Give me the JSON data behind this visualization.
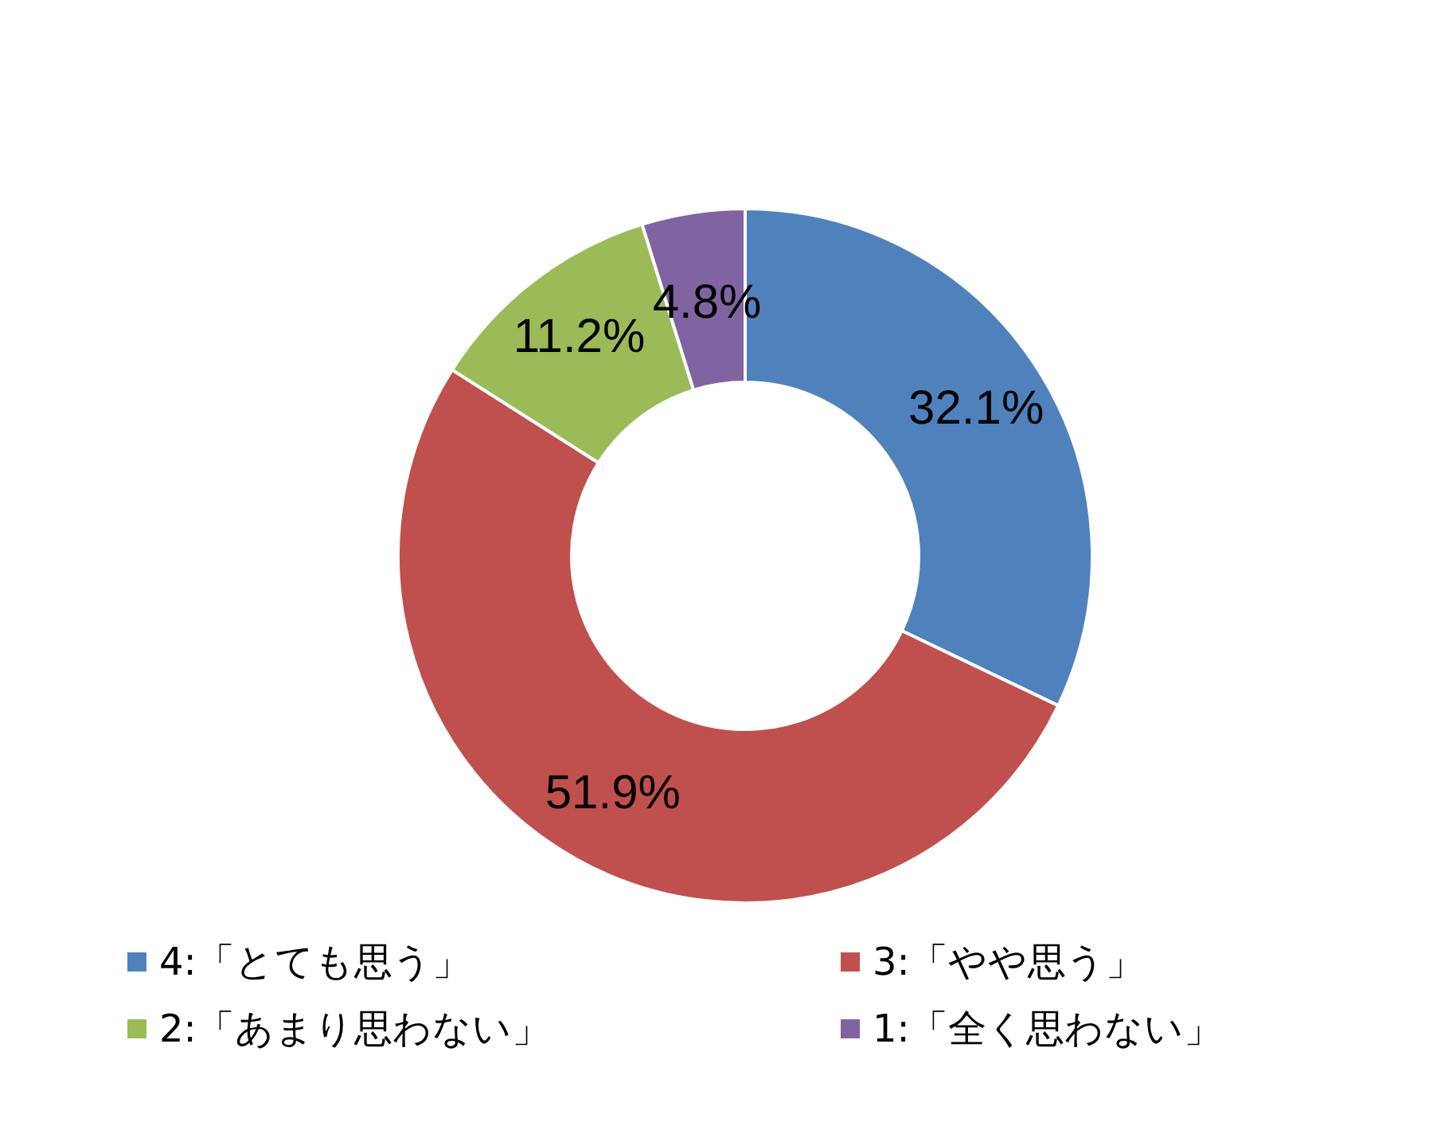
{
  "chart_data": {
    "type": "donut",
    "categories": [
      "4:「とても思う」",
      "3:「やや思う」",
      "2:「あまり思わない」",
      "1:「全く思わない」"
    ],
    "values": [
      32.1,
      51.9,
      11.2,
      4.8
    ],
    "colors": [
      "#4f81bd",
      "#c0504d",
      "#9bbb59",
      "#8064a2"
    ],
    "value_labels": [
      "32.1%",
      "51.9%",
      "11.2%",
      "4.8%"
    ],
    "legend": "bottom"
  }
}
